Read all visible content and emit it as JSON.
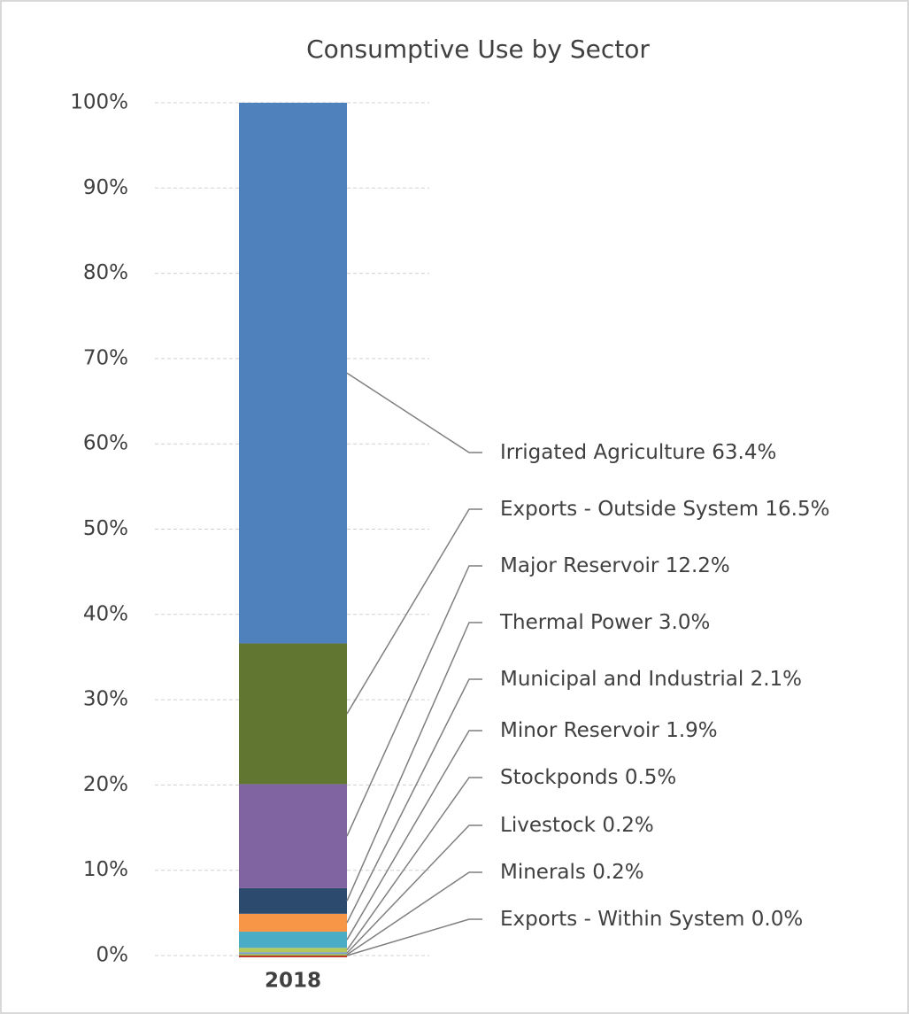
{
  "chart_data": {
    "type": "stacked_bar",
    "title": "Consumptive Use by Sector",
    "categories": [
      "2018"
    ],
    "series": [
      {
        "name": "Exports - Within System",
        "color": "#c0392b",
        "values": [
          0.0
        ],
        "value_labels": [
          "0.0%"
        ]
      },
      {
        "name": "Minerals",
        "color": "#9bbb59",
        "values": [
          0.2
        ],
        "value_labels": [
          "0.2%"
        ]
      },
      {
        "name": "Livestock",
        "color": "#7f9fd0",
        "values": [
          0.2
        ],
        "value_labels": [
          "0.2%"
        ]
      },
      {
        "name": "Stockponds",
        "color": "#b5c95a",
        "values": [
          0.5
        ],
        "value_labels": [
          "0.5%"
        ]
      },
      {
        "name": "Minor Reservoir",
        "color": "#4bacc6",
        "values": [
          1.9
        ],
        "value_labels": [
          "1.9%"
        ]
      },
      {
        "name": "Municipal and Industrial",
        "color": "#f79646",
        "values": [
          2.1
        ],
        "value_labels": [
          "2.1%"
        ]
      },
      {
        "name": "Thermal Power",
        "color": "#2c4a6e",
        "values": [
          3.0
        ],
        "value_labels": [
          "3.0%"
        ]
      },
      {
        "name": "Major Reservoir",
        "color": "#8064a2",
        "values": [
          12.2
        ],
        "value_labels": [
          "12.2%"
        ]
      },
      {
        "name": "Exports - Outside System",
        "color": "#617630",
        "values": [
          16.5
        ],
        "value_labels": [
          "16.5%"
        ]
      },
      {
        "name": "Irrigated Agriculture",
        "color": "#4f81bd",
        "values": [
          63.4
        ],
        "value_labels": [
          "63.4%"
        ]
      }
    ],
    "ylim": [
      0,
      100
    ],
    "yticks": [
      {
        "value": 0,
        "label": "0%"
      },
      {
        "value": 10,
        "label": "10%"
      },
      {
        "value": 20,
        "label": "20%"
      },
      {
        "value": 30,
        "label": "30%"
      },
      {
        "value": 40,
        "label": "40%"
      },
      {
        "value": 50,
        "label": "50%"
      },
      {
        "value": 60,
        "label": "60%"
      },
      {
        "value": 70,
        "label": "70%"
      },
      {
        "value": 80,
        "label": "80%"
      },
      {
        "value": 90,
        "label": "90%"
      },
      {
        "value": 100,
        "label": "100%"
      }
    ],
    "grid": true
  }
}
